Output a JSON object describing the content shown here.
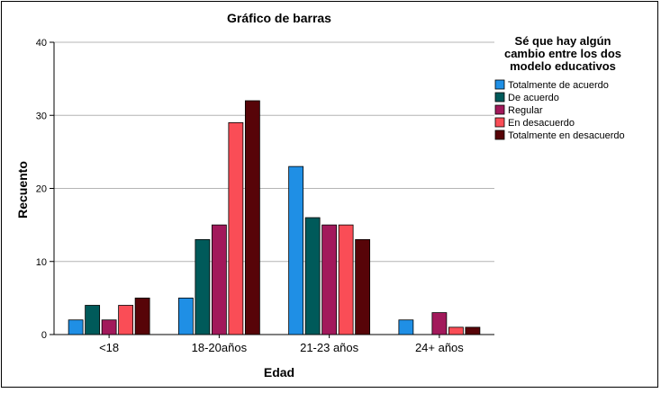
{
  "chart_data": {
    "type": "bar",
    "title": "Gráfico de barras",
    "xlabel": "Edad",
    "ylabel": "Recuento",
    "ylim": [
      0,
      40
    ],
    "yticks": [
      0,
      10,
      20,
      30,
      40
    ],
    "grid": true,
    "legend_position": "right",
    "categories": [
      "<18",
      "18-20años",
      "21-23 años",
      "24+ años"
    ],
    "legend_title": [
      "Sé que hay algún",
      "cambio entre los dos",
      "modelo educativos"
    ],
    "series": [
      {
        "name": "Totalmente de acuerdo",
        "color": "#1f8fe5",
        "values": [
          2,
          5,
          23,
          2
        ]
      },
      {
        "name": "De acuerdo",
        "color": "#005a5a",
        "values": [
          4,
          13,
          16,
          0
        ]
      },
      {
        "name": "Regular",
        "color": "#a2195b",
        "values": [
          2,
          15,
          15,
          3
        ]
      },
      {
        "name": "En desacuerdo",
        "color": "#fa4d56",
        "values": [
          4,
          29,
          15,
          1
        ]
      },
      {
        "name": "Totalmente en desacuerdo",
        "color": "#570408",
        "values": [
          5,
          32,
          13,
          1
        ]
      }
    ]
  }
}
